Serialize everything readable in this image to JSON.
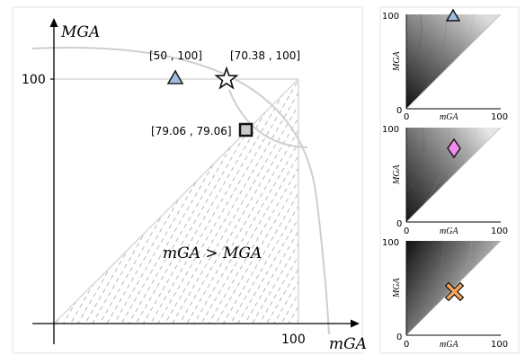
{
  "main_diagram": {
    "y_axis_label": "MGA",
    "x_axis_label": "mGA",
    "y_tick_100": "100",
    "x_tick_100": "100",
    "region_label": "mGA > MGA",
    "annotations": {
      "triangle": "[50 , 100]",
      "star": "[70.38 , 100]",
      "square": "[79.06 , 79.06]"
    },
    "marker_colors": {
      "triangle": "#9cbde0",
      "star": "#ffffff",
      "square": "#c8c8c8"
    }
  },
  "panels": [
    {
      "y_label": "MGA",
      "x_label": "mGA",
      "y_tick_top": "100",
      "y_tick_bottom": "0",
      "x_tick_left": "0",
      "x_tick_right": "100",
      "marker": "triangle-icon",
      "marker_color": "#9cbde0"
    },
    {
      "y_label": "MGA",
      "x_label": "mGA",
      "y_tick_top": "100",
      "y_tick_bottom": "0",
      "x_tick_left": "0",
      "x_tick_right": "100",
      "marker": "diamond-icon",
      "marker_color": "#f08cf0"
    },
    {
      "y_label": "MGA",
      "x_label": "mGA",
      "y_tick_top": "100",
      "y_tick_bottom": "0",
      "x_tick_left": "0",
      "x_tick_right": "100",
      "marker": "x-icon",
      "marker_color": "#f5a35a"
    }
  ]
}
